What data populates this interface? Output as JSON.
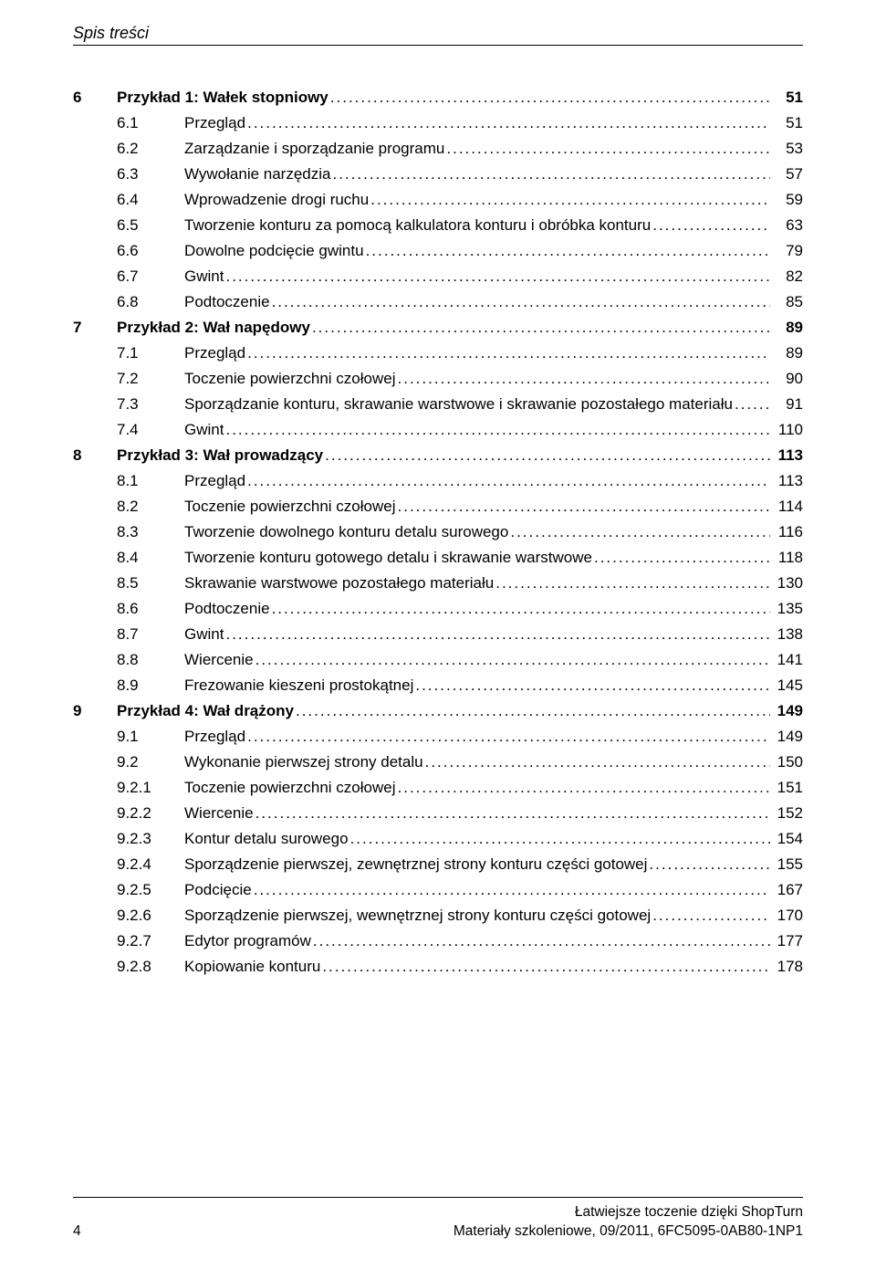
{
  "header": {
    "section_title": "Spis treści"
  },
  "toc": {
    "entries": [
      {
        "level": 1,
        "num": "6",
        "title": "Przykład 1: Wałek stopniowy",
        "page": "51"
      },
      {
        "level": 2,
        "num": "6.1",
        "title": "Przegląd",
        "page": "51"
      },
      {
        "level": 2,
        "num": "6.2",
        "title": "Zarządzanie i sporządzanie programu",
        "page": "53"
      },
      {
        "level": 2,
        "num": "6.3",
        "title": "Wywołanie narzędzia",
        "page": "57"
      },
      {
        "level": 2,
        "num": "6.4",
        "title": "Wprowadzenie drogi ruchu",
        "page": "59"
      },
      {
        "level": 2,
        "num": "6.5",
        "title": "Tworzenie konturu za pomocą kalkulatora konturu i obróbka konturu",
        "page": "63"
      },
      {
        "level": 2,
        "num": "6.6",
        "title": "Dowolne podcięcie gwintu",
        "page": "79"
      },
      {
        "level": 2,
        "num": "6.7",
        "title": "Gwint",
        "page": "82"
      },
      {
        "level": 2,
        "num": "6.8",
        "title": "Podtoczenie",
        "page": "85"
      },
      {
        "level": 1,
        "num": "7",
        "title": "Przykład 2: Wał napędowy",
        "page": "89"
      },
      {
        "level": 2,
        "num": "7.1",
        "title": "Przegląd",
        "page": "89"
      },
      {
        "level": 2,
        "num": "7.2",
        "title": "Toczenie powierzchni czołowej",
        "page": "90"
      },
      {
        "level": 2,
        "num": "7.3",
        "title": "Sporządzanie konturu, skrawanie warstwowe i skrawanie pozostałego materiału",
        "page": "91"
      },
      {
        "level": 2,
        "num": "7.4",
        "title": "Gwint",
        "page": "110"
      },
      {
        "level": 1,
        "num": "8",
        "title": "Przykład 3: Wał prowadzący",
        "page": "113"
      },
      {
        "level": 2,
        "num": "8.1",
        "title": "Przegląd",
        "page": "113"
      },
      {
        "level": 2,
        "num": "8.2",
        "title": "Toczenie powierzchni czołowej",
        "page": "114"
      },
      {
        "level": 2,
        "num": "8.3",
        "title": "Tworzenie dowolnego konturu detalu surowego",
        "page": "116"
      },
      {
        "level": 2,
        "num": "8.4",
        "title": "Tworzenie konturu gotowego detalu i skrawanie warstwowe",
        "page": "118"
      },
      {
        "level": 2,
        "num": "8.5",
        "title": "Skrawanie warstwowe pozostałego materiału",
        "page": "130"
      },
      {
        "level": 2,
        "num": "8.6",
        "title": "Podtoczenie",
        "page": "135"
      },
      {
        "level": 2,
        "num": "8.7",
        "title": "Gwint",
        "page": "138"
      },
      {
        "level": 2,
        "num": "8.8",
        "title": "Wiercenie",
        "page": "141"
      },
      {
        "level": 2,
        "num": "8.9",
        "title": "Frezowanie kieszeni prostokątnej",
        "page": "145"
      },
      {
        "level": 1,
        "num": "9",
        "title": "Przykład 4: Wał drążony",
        "page": "149"
      },
      {
        "level": 2,
        "num": "9.1",
        "title": "Przegląd",
        "page": "149"
      },
      {
        "level": 2,
        "num": "9.2",
        "title": "Wykonanie pierwszej strony detalu",
        "page": "150"
      },
      {
        "level": 3,
        "num": "9.2.1",
        "title": "Toczenie powierzchni czołowej",
        "page": "151"
      },
      {
        "level": 3,
        "num": "9.2.2",
        "title": "Wiercenie",
        "page": "152"
      },
      {
        "level": 3,
        "num": "9.2.3",
        "title": "Kontur detalu surowego",
        "page": "154"
      },
      {
        "level": 3,
        "num": "9.2.4",
        "title": "Sporządzenie pierwszej, zewnętrznej strony konturu części gotowej",
        "page": "155"
      },
      {
        "level": 3,
        "num": "9.2.5",
        "title": "Podcięcie",
        "page": "167"
      },
      {
        "level": 3,
        "num": "9.2.6",
        "title": "Sporządzenie pierwszej, wewnętrznej strony konturu części gotowej",
        "page": "170"
      },
      {
        "level": 3,
        "num": "9.2.7",
        "title": "Edytor programów",
        "page": "177"
      },
      {
        "level": 3,
        "num": "9.2.8",
        "title": "Kopiowanie konturu",
        "page": "178"
      }
    ]
  },
  "footer": {
    "page_number": "4",
    "line1_right": "Łatwiejsze toczenie dzięki ShopTurn",
    "line2_right": "Materiały szkoleniowe, 09/2011, 6FC5095-0AB80-1NP1"
  }
}
